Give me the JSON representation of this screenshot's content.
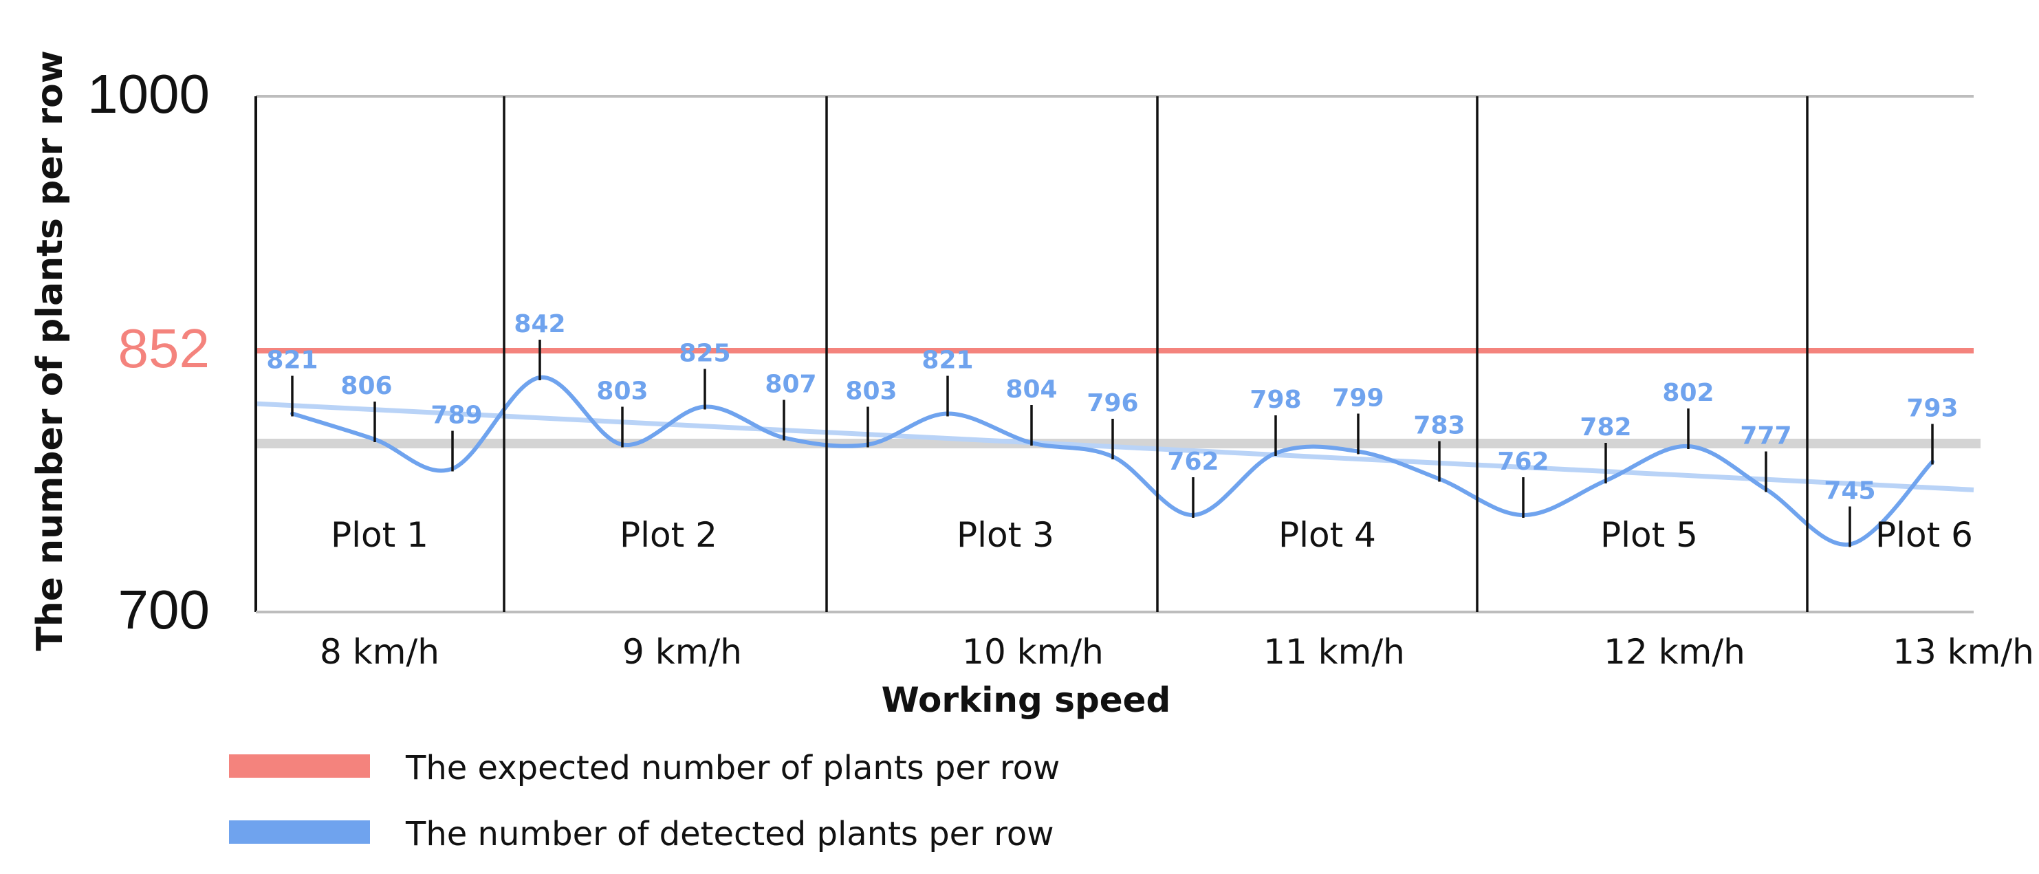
{
  "chart_data": {
    "type": "line",
    "xlabel": "Working speed",
    "ylabel": "The number of plants per row",
    "ylim": [
      700,
      1000
    ],
    "y_ticks": [
      "1000",
      "852",
      "700"
    ],
    "plots": [
      {
        "name": "Plot 1",
        "speed": "8 km/h"
      },
      {
        "name": "Plot 2",
        "speed": "9 km/h"
      },
      {
        "name": "Plot 3",
        "speed": "10 km/h"
      },
      {
        "name": "Plot 4",
        "speed": "11 km/h"
      },
      {
        "name": "Plot 5",
        "speed": "12 km/h"
      },
      {
        "name": "Plot 6",
        "speed": "13 km/h"
      }
    ],
    "series": [
      {
        "name": "The expected number of plants per row",
        "color": "#f4837d",
        "values": [
          852
        ]
      },
      {
        "name": "The  number of detected plants per row",
        "color": "#6fa3ee",
        "values": [
          821,
          806,
          789,
          842,
          803,
          825,
          807,
          803,
          821,
          804,
          796,
          762,
          798,
          799,
          783,
          762,
          782,
          802,
          777,
          745,
          793
        ]
      }
    ],
    "point_labels": [
      "821",
      "806",
      "789",
      "842",
      "803",
      "825",
      "807",
      "803",
      "821",
      "804",
      "796",
      "762",
      "798",
      "799",
      "783",
      "762",
      "782",
      "802",
      "777",
      "745",
      "793"
    ],
    "grid": true,
    "legend_position": "bottom-left"
  }
}
